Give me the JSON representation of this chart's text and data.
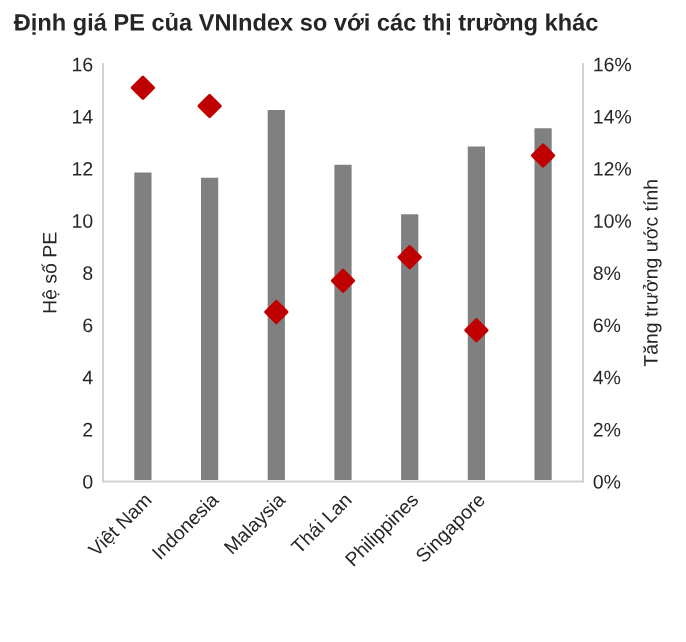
{
  "chart_data": {
    "type": "bar",
    "title": "Định giá PE của VNIndex so với các thị trường khác",
    "categories": [
      "Việt Nam",
      "Indonesia",
      "Malaysia",
      "Thái Lan",
      "Philippines",
      "Singapore",
      null
    ],
    "series": [
      {
        "color": "#808080",
        "values": [
          11.9,
          11.7,
          14.3,
          12.2,
          10.3,
          12.9,
          13.6
        ]
      },
      {
        "type": "scatter",
        "axis": "y2",
        "color": "#c00000",
        "marker": "diamond",
        "values": [
          15.1,
          14.4,
          6.5,
          7.7,
          8.6,
          5.8,
          12.5
        ]
      }
    ],
    "ylabel": "Hệ số PE",
    "y2label": "Tăng trưởng ước tính",
    "ylim": [
      0,
      16
    ],
    "yticks": [
      0,
      2,
      4,
      6,
      8,
      10,
      12,
      14,
      16
    ],
    "y2lim": [
      0,
      16
    ],
    "y2ticks": [
      {
        "value": 0,
        "label": "0%"
      },
      {
        "value": 2,
        "label": "2%"
      },
      {
        "value": 4,
        "label": "4%"
      },
      {
        "value": 6,
        "label": "6%"
      },
      {
        "value": 8,
        "label": "8%"
      },
      {
        "value": 10,
        "label": "10%"
      },
      {
        "value": 12,
        "label": "12%"
      },
      {
        "value": 14,
        "label": "14%"
      },
      {
        "value": 16,
        "label": "16%"
      }
    ],
    "grid": false,
    "legend": false
  }
}
